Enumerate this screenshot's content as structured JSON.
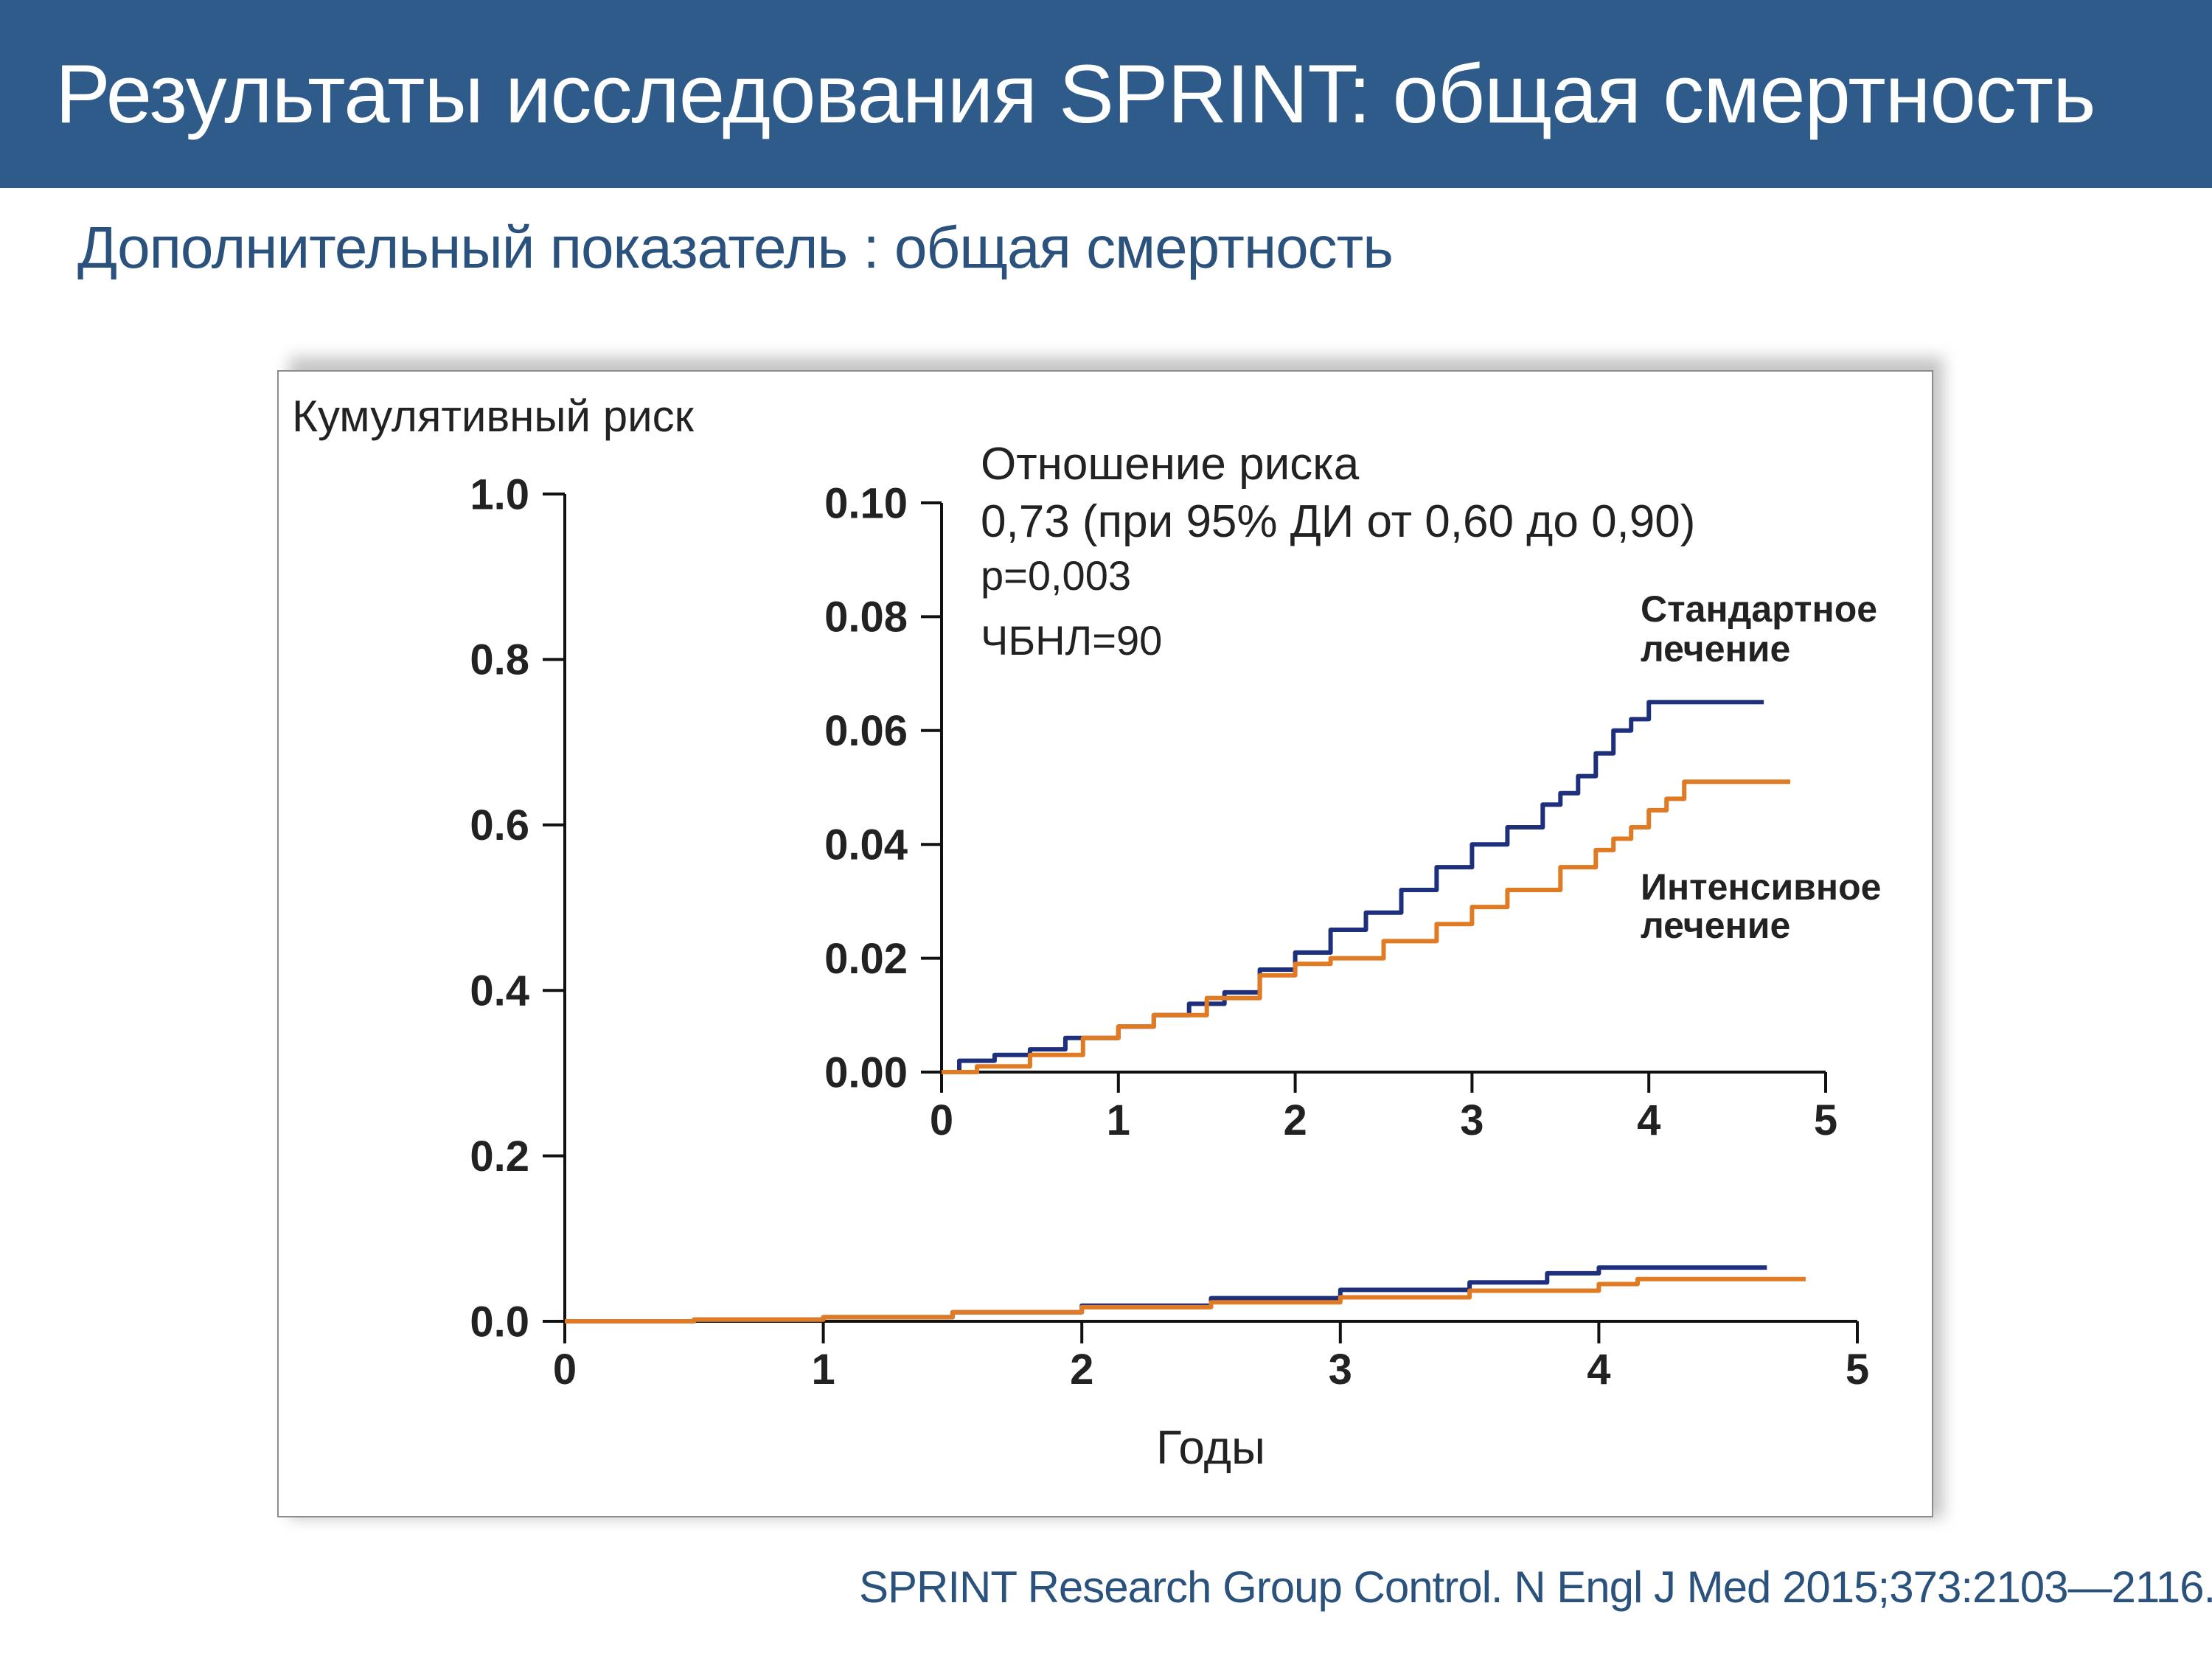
{
  "slide": {
    "title": "Результаты исследования SPRINT: общая смертность",
    "subtitle": "Дополнительный показатель : общая смертность",
    "citation": "SPRINT Research Group Control. N Engl J Med 2015;373:2103—2116.",
    "header_color": "#2e5b8a",
    "text_color": "#2a527d"
  },
  "chart_data": [
    {
      "type": "line",
      "role": "main",
      "ylabel": "Кумулятивный риск",
      "xlabel": "Годы",
      "xlim": [
        0,
        5
      ],
      "ylim": [
        0,
        1.0
      ],
      "x_ticks": [
        "0",
        "1",
        "2",
        "3",
        "4",
        "5"
      ],
      "y_ticks": [
        "0.0",
        "0.2",
        "0.4",
        "0.6",
        "0.8",
        "1.0"
      ],
      "grid": false,
      "series": [
        {
          "color": "#1e2f7c",
          "points": [
            [
              0,
              0
            ],
            [
              0.5,
              0.002
            ],
            [
              1,
              0.005
            ],
            [
              1.5,
              0.011
            ],
            [
              2,
              0.019
            ],
            [
              2.5,
              0.028
            ],
            [
              3,
              0.038
            ],
            [
              3.5,
              0.047
            ],
            [
              3.8,
              0.058
            ],
            [
              4,
              0.065
            ],
            [
              4.65,
              0.065
            ]
          ]
        },
        {
          "color": "#e07b24",
          "points": [
            [
              0,
              0
            ],
            [
              0.5,
              0.002
            ],
            [
              1,
              0.005
            ],
            [
              1.5,
              0.011
            ],
            [
              2,
              0.017
            ],
            [
              2.5,
              0.023
            ],
            [
              3,
              0.029
            ],
            [
              3.5,
              0.037
            ],
            [
              4,
              0.045
            ],
            [
              4.15,
              0.051
            ],
            [
              4.8,
              0.051
            ]
          ]
        }
      ]
    },
    {
      "type": "line",
      "role": "inset",
      "xlim": [
        0,
        5
      ],
      "ylim": [
        0,
        0.1
      ],
      "x_ticks": [
        "0",
        "1",
        "2",
        "3",
        "4",
        "5"
      ],
      "y_ticks": [
        "0.00",
        "0.02",
        "0.04",
        "0.06",
        "0.08",
        "0.10"
      ],
      "grid": false,
      "annotations": [
        "Отношение риска",
        "0,73 (при 95% ДИ от 0,60 до 0,90)",
        "p=0,003",
        "ЧБНЛ=90"
      ],
      "series": [
        {
          "name": "Стандартное лечение",
          "label_lines": [
            "Стандартное",
            "лечение"
          ],
          "color": "#1e2f7c",
          "points": [
            [
              0,
              0
            ],
            [
              0.1,
              0.002
            ],
            [
              0.3,
              0.003
            ],
            [
              0.5,
              0.004
            ],
            [
              0.7,
              0.006
            ],
            [
              1,
              0.008
            ],
            [
              1.2,
              0.01
            ],
            [
              1.4,
              0.012
            ],
            [
              1.6,
              0.014
            ],
            [
              1.8,
              0.018
            ],
            [
              2,
              0.021
            ],
            [
              2.2,
              0.025
            ],
            [
              2.4,
              0.028
            ],
            [
              2.6,
              0.032
            ],
            [
              2.8,
              0.036
            ],
            [
              3,
              0.04
            ],
            [
              3.2,
              0.043
            ],
            [
              3.4,
              0.047
            ],
            [
              3.5,
              0.049
            ],
            [
              3.6,
              0.052
            ],
            [
              3.7,
              0.056
            ],
            [
              3.8,
              0.06
            ],
            [
              3.9,
              0.062
            ],
            [
              4,
              0.065
            ],
            [
              4.65,
              0.065
            ]
          ]
        },
        {
          "name": "Интенсивное лечение",
          "label_lines": [
            "Интенсивное",
            "лечение"
          ],
          "color": "#e07b24",
          "points": [
            [
              0,
              0
            ],
            [
              0.2,
              0.001
            ],
            [
              0.5,
              0.003
            ],
            [
              0.8,
              0.006
            ],
            [
              1,
              0.008
            ],
            [
              1.2,
              0.01
            ],
            [
              1.5,
              0.013
            ],
            [
              1.8,
              0.017
            ],
            [
              2,
              0.019
            ],
            [
              2.2,
              0.02
            ],
            [
              2.5,
              0.023
            ],
            [
              2.8,
              0.026
            ],
            [
              3,
              0.029
            ],
            [
              3.2,
              0.032
            ],
            [
              3.5,
              0.036
            ],
            [
              3.7,
              0.039
            ],
            [
              3.8,
              0.041
            ],
            [
              3.9,
              0.043
            ],
            [
              4,
              0.046
            ],
            [
              4.1,
              0.048
            ],
            [
              4.2,
              0.051
            ],
            [
              4.8,
              0.051
            ]
          ]
        }
      ]
    }
  ]
}
